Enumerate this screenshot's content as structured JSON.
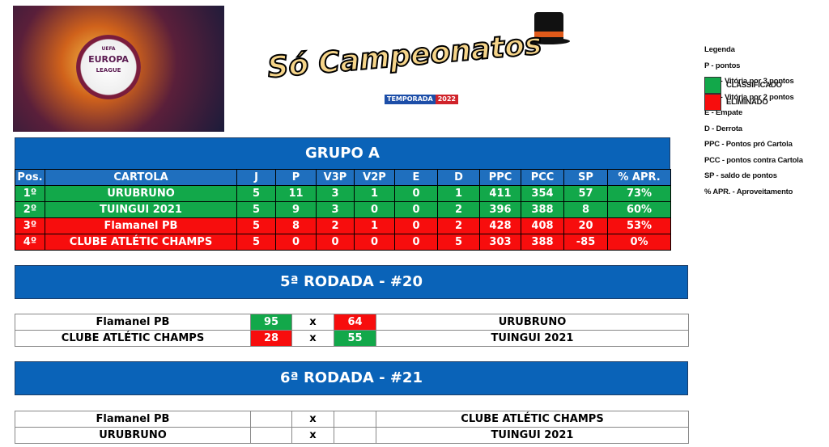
{
  "logos": {
    "uel_text": [
      "UEFA",
      "EUROPA",
      "LEAGUE"
    ],
    "site_title": "Só Campeonatos",
    "season": [
      "TEMPORADA",
      "2022"
    ]
  },
  "group": {
    "title": "GRUPO A",
    "headers": [
      "Pos.",
      "CARTOLA",
      "J",
      "P",
      "V3P",
      "V2P",
      "E",
      "D",
      "PPC",
      "PCC",
      "SP",
      "% APR."
    ],
    "rows": [
      {
        "status": "classificado",
        "cells": [
          "1º",
          "URUBRUNO",
          "5",
          "11",
          "3",
          "1",
          "0",
          "1",
          "411",
          "354",
          "57",
          "73%"
        ]
      },
      {
        "status": "classificado",
        "cells": [
          "2º",
          "TUINGUI 2021",
          "5",
          "9",
          "3",
          "0",
          "0",
          "2",
          "396",
          "388",
          "8",
          "60%"
        ]
      },
      {
        "status": "eliminado",
        "cells": [
          "3º",
          "Flamanel PB",
          "5",
          "8",
          "2",
          "1",
          "0",
          "2",
          "428",
          "408",
          "20",
          "53%"
        ]
      },
      {
        "status": "eliminado",
        "cells": [
          "4º",
          "CLUBE ATLÉTIC CHAMPS",
          "5",
          "0",
          "0",
          "0",
          "0",
          "5",
          "303",
          "388",
          "-85",
          "0%"
        ]
      }
    ]
  },
  "round5": {
    "title": "5ª RODADA - #20",
    "matches": [
      {
        "home": "Flamanel PB",
        "home_score": "95",
        "sep": "x",
        "away_score": "64",
        "away": "URUBRUNO"
      },
      {
        "home": "CLUBE ATLÉTIC CHAMPS",
        "home_score": "28",
        "sep": "x",
        "away_score": "55",
        "away": "TUINGUI 2021"
      }
    ]
  },
  "round6": {
    "title": "6ª RODADA - #21",
    "matches": [
      {
        "home": "Flamanel PB",
        "home_score": "",
        "sep": "x",
        "away_score": "",
        "away": "CLUBE ATLÉTIC CHAMPS"
      },
      {
        "home": "URUBRUNO",
        "home_score": "",
        "sep": "x",
        "away_score": "",
        "away": "TUINGUI 2021"
      }
    ]
  },
  "legend": {
    "title": "Legenda",
    "items": [
      "P - pontos",
      "V3P - Vitória por 3 pontos",
      "V2P - Vitória por 2 pontos",
      "E - Empate",
      "D - Derrota",
      "PPC - Pontos pró Cartola",
      "PCC - pontos contra Cartola",
      "SP - saldo de pontos",
      "% APR. - Aproveitamento"
    ],
    "classificado": "CLASSIFICADO",
    "eliminado": "ELIMINADO"
  },
  "colors": {
    "header_blue": "#1f6fbe",
    "banner_blue": "#0a63b8",
    "green": "#12a84a",
    "red": "#f70d0d"
  }
}
